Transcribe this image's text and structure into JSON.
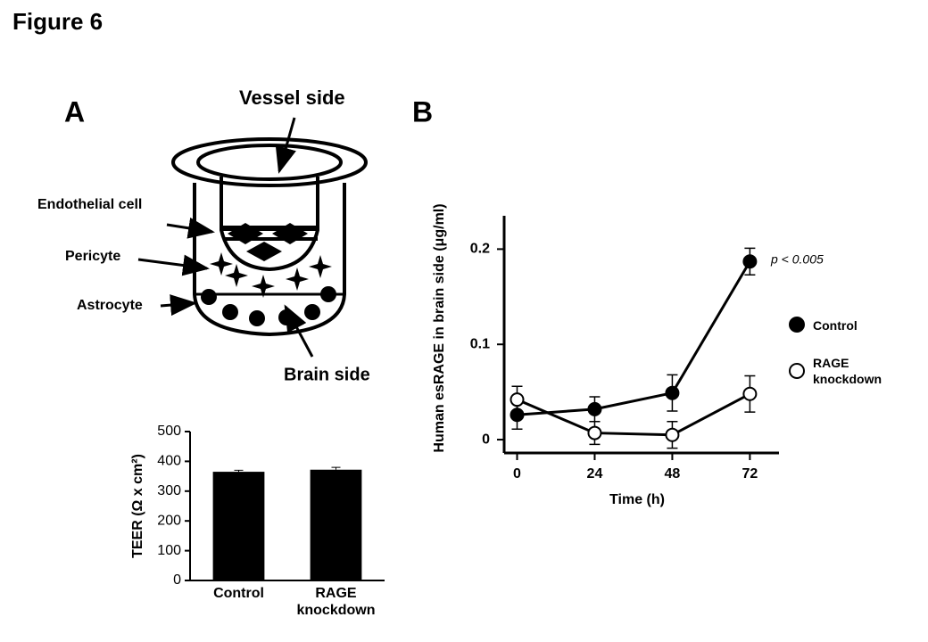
{
  "figure_title": "Figure 6",
  "panels": [
    "A",
    "B"
  ],
  "diagram": {
    "top_label": "Vessel  side",
    "bottom_label": "Brain side",
    "cells": [
      "Endothelial cell",
      "Pericyte",
      "Astrocyte"
    ]
  },
  "chart_data": [
    {
      "type": "bar",
      "ylabel": "TEER (Ω x cm²)",
      "categories": [
        "Control",
        "RAGE knockdown"
      ],
      "values": [
        365,
        372
      ],
      "errors": [
        5,
        8
      ],
      "color": "#000000",
      "ylim": [
        0,
        500
      ],
      "yticks": [
        0,
        100,
        200,
        300,
        400,
        500
      ],
      "grid": false
    },
    {
      "type": "line",
      "xlabel": "Time (h)",
      "ylabel": "Human esRAGE in brain side (μg/ml)",
      "annotation": "p < 0.005",
      "x": [
        0,
        24,
        48,
        72
      ],
      "series": [
        {
          "name": "Control",
          "color": "#000000",
          "values": [
            0.026,
            0.032,
            0.049,
            0.187
          ],
          "errors": [
            0.015,
            0.013,
            0.019,
            0.014
          ]
        },
        {
          "name": "RAGE knockdown",
          "color": "#ffffff",
          "values": [
            0.042,
            0.007,
            0.005,
            0.048
          ],
          "errors": [
            0.014,
            0.012,
            0.014,
            0.019
          ]
        }
      ],
      "xlim": [
        -4,
        81
      ],
      "xticks": [
        0,
        24,
        48,
        72
      ],
      "ylim": [
        -0.014,
        0.235
      ],
      "yticks": [
        0,
        0.1,
        0.2
      ],
      "grid": false,
      "legend": "right"
    }
  ]
}
